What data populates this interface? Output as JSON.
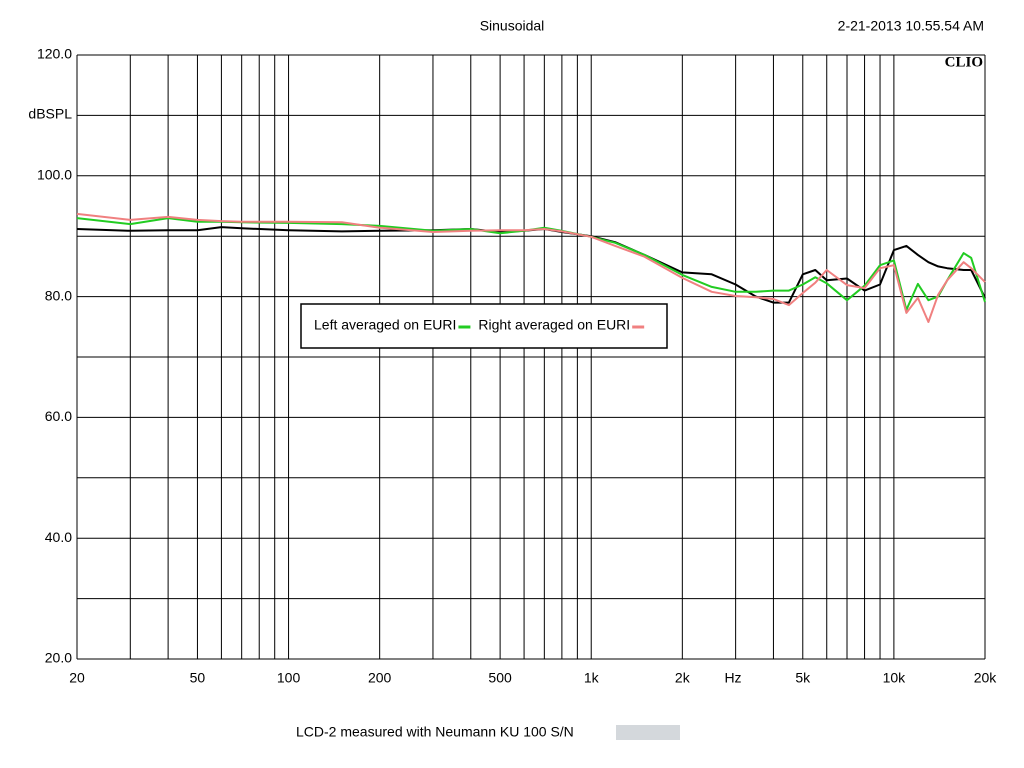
{
  "chart_data": {
    "type": "line",
    "title": "Sinusoidal",
    "timestamp": "2-21-2013 10.55.54 AM",
    "brand": "CLIO",
    "y_label": "dBSPL",
    "x_label": "Hz",
    "caption": "LCD-2 measured with Neumann KU 100   S/N",
    "xscale": "log",
    "grid": true,
    "legend": "center",
    "xlim": [
      20,
      20000
    ],
    "ylim": [
      20,
      120
    ],
    "xticks": [
      20,
      {
        "value": 30,
        "label": null
      },
      {
        "value": 40,
        "label": null
      },
      50,
      {
        "value": 60,
        "label": null
      },
      {
        "value": 70,
        "label": null
      },
      {
        "value": 80,
        "label": null
      },
      {
        "value": 90,
        "label": null
      },
      100,
      200,
      {
        "value": 300,
        "label": null
      },
      {
        "value": 400,
        "label": null
      },
      500,
      {
        "value": 600,
        "label": null
      },
      {
        "value": 700,
        "label": null
      },
      {
        "value": 800,
        "label": null
      },
      {
        "value": 900,
        "label": null
      },
      {
        "value": 1000,
        "label": "1k"
      },
      {
        "value": 2000,
        "label": "2k"
      },
      {
        "value": 3000,
        "label": null
      },
      {
        "value": 4000,
        "label": null
      },
      {
        "value": 5000,
        "label": "5k"
      },
      {
        "value": 6000,
        "label": null
      },
      {
        "value": 7000,
        "label": null
      },
      {
        "value": 8000,
        "label": null
      },
      {
        "value": 9000,
        "label": null
      },
      {
        "value": 10000,
        "label": "10k"
      },
      {
        "value": 20000,
        "label": "20k"
      }
    ],
    "yticks": [
      {
        "value": 20,
        "label": "20.0"
      },
      {
        "value": 30,
        "label": null
      },
      {
        "value": 40,
        "label": "40.0"
      },
      {
        "value": 50,
        "label": null
      },
      {
        "value": 60,
        "label": "60.0"
      },
      {
        "value": 70,
        "label": null
      },
      {
        "value": 80,
        "label": "80.0"
      },
      {
        "value": 90,
        "label": null
      },
      {
        "value": 100,
        "label": "100.0"
      },
      {
        "value": 110,
        "label": null
      },
      {
        "value": 120,
        "label": "120.0"
      }
    ],
    "x": [
      20,
      30,
      40,
      50,
      60,
      70,
      100,
      150,
      200,
      300,
      400,
      500,
      600,
      700,
      800,
      1000,
      1200,
      1500,
      2000,
      2500,
      3000,
      3500,
      4000,
      4500,
      5000,
      5500,
      6000,
      7000,
      8000,
      9000,
      10000,
      11000,
      12000,
      13000,
      14000,
      15000,
      17000,
      18000,
      20000
    ],
    "series": [
      {
        "color": "#000000",
        "values": [
          91.2,
          90.9,
          91.0,
          91.0,
          91.5,
          91.3,
          91.0,
          90.8,
          90.9,
          91.0,
          91.2,
          90.7,
          90.9,
          91.2,
          90.7,
          90.0,
          89.0,
          86.9,
          84.0,
          83.7,
          82.0,
          80.0,
          79.0,
          79.0,
          83.7,
          84.4,
          82.7,
          83.0,
          81.0,
          82.0,
          87.7,
          88.4,
          86.9,
          85.7,
          85.0,
          84.7,
          84.4,
          84.4,
          79.8
        ]
      },
      {
        "name": "Left averaged on EURI",
        "color": "#22cc22",
        "values": [
          93.0,
          92.0,
          93.0,
          92.4,
          92.4,
          92.3,
          92.2,
          92.0,
          91.7,
          90.9,
          91.2,
          90.5,
          90.9,
          91.4,
          90.9,
          89.9,
          88.9,
          86.9,
          83.6,
          81.6,
          80.8,
          80.8,
          81.0,
          81.0,
          82.0,
          83.2,
          82.2,
          79.4,
          81.8,
          85.2,
          86.0,
          77.8,
          82.1,
          79.4,
          80.0,
          82.7,
          87.2,
          86.4,
          79.1
        ]
      },
      {
        "name": "Right averaged on EURI",
        "color": "#f08080",
        "values": [
          93.7,
          92.7,
          93.2,
          92.7,
          92.5,
          92.4,
          92.4,
          92.3,
          91.4,
          90.7,
          90.9,
          91.0,
          91.0,
          91.2,
          90.8,
          89.9,
          88.4,
          86.6,
          83.1,
          80.8,
          80.1,
          79.9,
          79.6,
          78.6,
          80.6,
          82.3,
          84.4,
          81.9,
          81.4,
          84.7,
          85.2,
          77.3,
          79.8,
          75.8,
          80.3,
          82.7,
          85.7,
          84.7,
          82.4
        ]
      }
    ]
  }
}
